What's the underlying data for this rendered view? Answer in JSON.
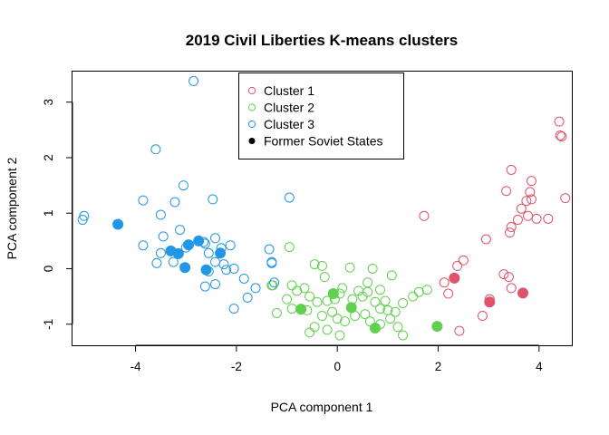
{
  "chart_data": {
    "type": "scatter",
    "title": "2019 Civil Liberties K-means clusters",
    "xlabel": "PCA component 1",
    "ylabel": "PCA component 2",
    "xlim": [
      -5.25,
      4.65
    ],
    "ylim": [
      -1.38,
      3.55
    ],
    "x_ticks": [
      -4,
      -2,
      0,
      2,
      4
    ],
    "y_ticks": [
      -1,
      0,
      1,
      2,
      3
    ],
    "legend_position": "top-center",
    "legend": [
      {
        "label": "Cluster 1",
        "color": "#DF536B",
        "marker": "open-circle"
      },
      {
        "label": "Cluster 2",
        "color": "#61D04F",
        "marker": "open-circle"
      },
      {
        "label": "Cluster 3",
        "color": "#2297E6",
        "marker": "open-circle"
      },
      {
        "label": "Former Soviet States",
        "color": "#000000",
        "marker": "filled-circle"
      }
    ],
    "series": [
      {
        "name": "Cluster 1",
        "color": "#DF536B",
        "points": [
          [
            4.4,
            2.65
          ],
          [
            4.42,
            2.4
          ],
          [
            4.45,
            2.38
          ],
          [
            3.85,
            1.58
          ],
          [
            3.45,
            1.78
          ],
          [
            3.35,
            1.4
          ],
          [
            4.52,
            1.27
          ],
          [
            3.82,
            1.38
          ],
          [
            3.75,
            1.22
          ],
          [
            3.85,
            1.25
          ],
          [
            3.65,
            1.08
          ],
          [
            3.78,
            0.95
          ],
          [
            3.95,
            0.9
          ],
          [
            4.18,
            0.9
          ],
          [
            3.58,
            0.88
          ],
          [
            3.45,
            0.75
          ],
          [
            3.42,
            0.65
          ],
          [
            1.72,
            0.95
          ],
          [
            2.95,
            0.53
          ],
          [
            2.5,
            0.15
          ],
          [
            2.38,
            0.05
          ],
          [
            2.12,
            -0.25
          ],
          [
            2.2,
            -0.45
          ],
          [
            3.3,
            -0.1
          ],
          [
            3.4,
            -0.15
          ],
          [
            3.45,
            -0.35
          ],
          [
            3.02,
            -0.55
          ],
          [
            2.88,
            -0.85
          ],
          [
            2.42,
            -1.12
          ]
        ],
        "soviet": [
          [
            2.32,
            -0.17
          ],
          [
            3.02,
            -0.6
          ],
          [
            3.68,
            -0.44
          ]
        ]
      },
      {
        "name": "Cluster 2",
        "color": "#61D04F",
        "points": [
          [
            -0.95,
            0.39
          ],
          [
            -0.45,
            0.08
          ],
          [
            -0.3,
            0.05
          ],
          [
            0.7,
            0.0
          ],
          [
            0.25,
            0.02
          ],
          [
            1.08,
            -0.12
          ],
          [
            -1.3,
            -0.3
          ],
          [
            -1.28,
            -0.3
          ],
          [
            -0.9,
            -0.3
          ],
          [
            -0.8,
            -0.4
          ],
          [
            -0.65,
            -0.35
          ],
          [
            -0.55,
            -0.5
          ],
          [
            -0.4,
            -0.6
          ],
          [
            -0.2,
            -0.58
          ],
          [
            -0.05,
            -0.55
          ],
          [
            0.05,
            -0.45
          ],
          [
            0.1,
            -0.35
          ],
          [
            0.3,
            -0.55
          ],
          [
            0.42,
            -0.4
          ],
          [
            0.5,
            -0.5
          ],
          [
            0.6,
            -0.42
          ],
          [
            0.75,
            -0.6
          ],
          [
            0.85,
            -0.72
          ],
          [
            0.95,
            -0.58
          ],
          [
            1.0,
            -0.75
          ],
          [
            1.15,
            -0.78
          ],
          [
            1.3,
            -0.62
          ],
          [
            1.5,
            -0.5
          ],
          [
            1.62,
            -0.42
          ],
          [
            1.78,
            -0.38
          ],
          [
            -1.0,
            -0.55
          ],
          [
            -1.2,
            -0.8
          ],
          [
            -0.9,
            -0.72
          ],
          [
            -0.6,
            -0.75
          ],
          [
            -0.3,
            -0.85
          ],
          [
            -0.1,
            -0.78
          ],
          [
            0.0,
            -0.9
          ],
          [
            0.15,
            -0.95
          ],
          [
            0.35,
            -0.85
          ],
          [
            0.55,
            -0.82
          ],
          [
            0.65,
            -0.95
          ],
          [
            0.85,
            -1.0
          ],
          [
            1.05,
            -0.9
          ],
          [
            1.2,
            -1.05
          ],
          [
            -0.45,
            -1.05
          ],
          [
            -0.55,
            -1.15
          ],
          [
            -0.2,
            -1.1
          ],
          [
            0.05,
            -1.2
          ],
          [
            1.3,
            -1.2
          ],
          [
            0.85,
            -0.38
          ],
          [
            -0.25,
            -0.15
          ],
          [
            0.6,
            -0.25
          ]
        ],
        "soviet": [
          [
            -0.72,
            -0.73
          ],
          [
            -0.08,
            -0.45
          ],
          [
            0.28,
            -0.7
          ],
          [
            0.75,
            -1.07
          ],
          [
            1.98,
            -1.04
          ]
        ]
      },
      {
        "name": "Cluster 3",
        "color": "#2297E6",
        "points": [
          [
            -2.85,
            3.38
          ],
          [
            -3.6,
            2.15
          ],
          [
            -3.05,
            1.5
          ],
          [
            -3.22,
            1.2
          ],
          [
            -3.85,
            1.23
          ],
          [
            -2.47,
            1.25
          ],
          [
            -5.02,
            0.95
          ],
          [
            -5.05,
            0.88
          ],
          [
            -0.95,
            1.28
          ],
          [
            -3.5,
            0.97
          ],
          [
            -3.45,
            0.58
          ],
          [
            -3.12,
            0.7
          ],
          [
            -3.0,
            0.38
          ],
          [
            -3.85,
            0.42
          ],
          [
            -2.65,
            0.48
          ],
          [
            -2.62,
            0.45
          ],
          [
            -2.42,
            0.55
          ],
          [
            -2.3,
            0.37
          ],
          [
            -2.12,
            0.42
          ],
          [
            -3.5,
            0.28
          ],
          [
            -3.25,
            0.12
          ],
          [
            -3.58,
            0.1
          ],
          [
            -2.55,
            0.28
          ],
          [
            -2.42,
            0.12
          ],
          [
            -2.25,
            0.08
          ],
          [
            -2.55,
            -0.05
          ],
          [
            -2.2,
            -0.02
          ],
          [
            -2.05,
            0.0
          ],
          [
            -1.35,
            0.35
          ],
          [
            -1.3,
            0.1
          ],
          [
            -1.25,
            -0.25
          ],
          [
            -1.85,
            -0.18
          ],
          [
            -2.62,
            -0.32
          ],
          [
            -2.42,
            -0.28
          ],
          [
            -1.62,
            -0.35
          ],
          [
            -1.78,
            -0.52
          ],
          [
            -2.05,
            -0.72
          ],
          [
            -1.3,
            0.12
          ]
        ],
        "soviet": [
          [
            -4.35,
            0.8
          ],
          [
            -3.3,
            0.32
          ],
          [
            -3.15,
            0.27
          ],
          [
            -2.75,
            0.5
          ],
          [
            -2.95,
            0.43
          ],
          [
            -2.32,
            0.28
          ],
          [
            -3.02,
            0.02
          ],
          [
            -2.6,
            -0.02
          ]
        ]
      }
    ]
  }
}
